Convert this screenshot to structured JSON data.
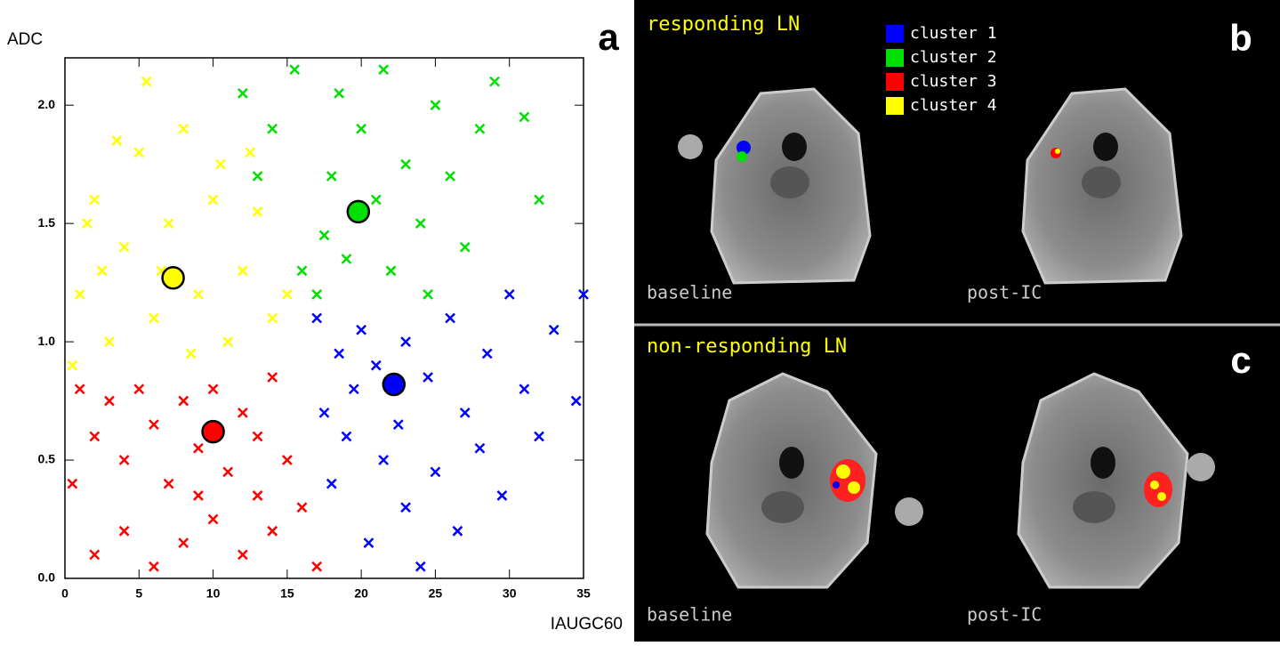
{
  "chart_data": {
    "type": "scatter",
    "panel_label": "a",
    "ylabel": "ADC",
    "xlabel": "IAUGC60",
    "xlim": [
      0,
      35
    ],
    "xticks": [
      0,
      5,
      10,
      15,
      20,
      25,
      30,
      35
    ],
    "ylim": [
      0,
      2.2
    ],
    "yticks": [
      {
        "value": 0,
        "label": "0.0"
      },
      0.5,
      {
        "value": 1,
        "label": "1.0"
      },
      1.5,
      {
        "value": 2,
        "label": "2.0"
      }
    ],
    "series": [
      {
        "name": "cluster 1",
        "color": "#0000ff",
        "x": [
          17,
          18.5,
          20,
          21,
          23,
          24.5,
          26,
          27,
          28.5,
          30,
          31,
          33,
          34.5,
          17.5,
          19,
          21.5,
          23,
          25,
          26.5,
          28,
          29.5,
          24,
          20.5,
          22.5,
          18,
          32,
          35,
          19.5
        ],
        "y": [
          1.1,
          0.95,
          1.05,
          0.9,
          1.0,
          0.85,
          1.1,
          0.7,
          0.95,
          1.2,
          0.8,
          1.05,
          0.75,
          0.7,
          0.6,
          0.5,
          0.3,
          0.45,
          0.2,
          0.55,
          0.35,
          0.05,
          0.15,
          0.65,
          0.4,
          0.6,
          1.2,
          0.8
        ]
      },
      {
        "name": "cluster 2",
        "color": "#00e000",
        "x": [
          16,
          17.5,
          18,
          19,
          20,
          21,
          22,
          23,
          24,
          25,
          26,
          27,
          28,
          29,
          31,
          32,
          14,
          12,
          15.5,
          18.5,
          21.5,
          24.5,
          13,
          17
        ],
        "y": [
          1.3,
          1.45,
          1.7,
          1.35,
          1.9,
          1.6,
          1.3,
          1.75,
          1.5,
          2.0,
          1.7,
          1.4,
          1.9,
          2.1,
          1.95,
          1.6,
          1.9,
          2.05,
          2.15,
          2.05,
          2.15,
          1.2,
          1.7,
          1.2
        ]
      },
      {
        "name": "cluster 3",
        "color": "#ff0000",
        "x": [
          1,
          2,
          3,
          4,
          5,
          6,
          7,
          8,
          9,
          10,
          11,
          12,
          13,
          14,
          15,
          16,
          14,
          12,
          10,
          8,
          6,
          4,
          2,
          0.5,
          17,
          13,
          9
        ],
        "y": [
          0.8,
          0.6,
          0.75,
          0.5,
          0.8,
          0.65,
          0.4,
          0.75,
          0.55,
          0.8,
          0.45,
          0.7,
          0.6,
          0.85,
          0.5,
          0.3,
          0.2,
          0.1,
          0.25,
          0.15,
          0.05,
          0.2,
          0.1,
          0.4,
          0.05,
          0.35,
          0.35
        ]
      },
      {
        "name": "cluster 4",
        "color": "#ffff00",
        "x": [
          0.5,
          1,
          2,
          3,
          4,
          5,
          5.5,
          6,
          7,
          8,
          9,
          10,
          11,
          12,
          13,
          14,
          15,
          3.5,
          1.5,
          8.5,
          10.5,
          6.5,
          12.5,
          2.5
        ],
        "y": [
          0.9,
          1.2,
          1.6,
          1.0,
          1.4,
          1.8,
          2.1,
          1.1,
          1.5,
          1.9,
          1.2,
          1.6,
          1.0,
          1.3,
          1.55,
          1.1,
          1.2,
          1.85,
          1.5,
          0.95,
          1.75,
          1.3,
          1.8,
          1.3
        ]
      }
    ],
    "centroids": [
      {
        "x": 22.2,
        "y": 0.82,
        "color": "#0000ff"
      },
      {
        "x": 19.8,
        "y": 1.55,
        "color": "#00e000"
      },
      {
        "x": 10,
        "y": 0.62,
        "color": "#ff0000"
      },
      {
        "x": 7.3,
        "y": 1.27,
        "color": "#ffff00"
      }
    ]
  },
  "panels": [
    {
      "label": "b",
      "title": "responding LN",
      "image_labels": [
        "baseline",
        "post-IC"
      ]
    },
    {
      "label": "c",
      "title": "non-responding LN",
      "image_labels": [
        "baseline",
        "post-IC"
      ]
    }
  ]
}
